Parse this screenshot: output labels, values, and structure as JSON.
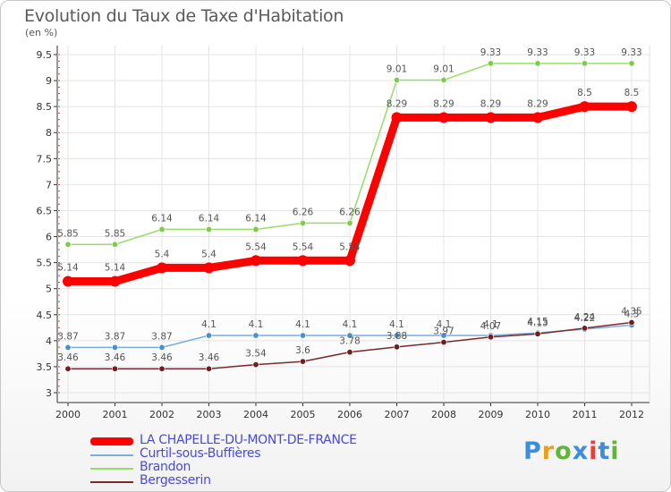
{
  "header": {
    "title": "Evolution du Taux de Taxe d'Habitation",
    "unit": "(en %)"
  },
  "logo": {
    "text": "Proxiti",
    "colors": [
      "#3c8dde",
      "#e8a020",
      "#62b43a",
      "#3c8dde",
      "#e84040",
      "#3c8dde",
      "#62b43a"
    ]
  },
  "chart_data": {
    "type": "line",
    "title": "Evolution du Taux de Taxe d'Habitation",
    "ylabel": "(en %)",
    "xlabel": "",
    "ylim": [
      3,
      9.5
    ],
    "yticks": [
      "3",
      "3.5",
      "4",
      "4.5",
      "5",
      "5.5",
      "6",
      "6.5",
      "7",
      "7.5",
      "8",
      "8.5",
      "9",
      "9.5"
    ],
    "categories": [
      "2000",
      "2001",
      "2002",
      "2003",
      "2004",
      "2005",
      "2006",
      "2007",
      "2008",
      "2009",
      "2010",
      "2011",
      "2012"
    ],
    "grid": true,
    "legend_position": "bottom-left",
    "series": [
      {
        "name": "Brandon",
        "color": "#98dc6a",
        "marker": "#7ecb4a",
        "values": [
          5.85,
          5.85,
          6.14,
          6.14,
          6.14,
          6.26,
          6.26,
          9.01,
          9.01,
          9.33,
          9.33,
          9.33,
          9.33
        ],
        "labels": [
          "5.85",
          "5.85",
          "6.14",
          "6.14",
          "6.14",
          "6.26",
          "6.26",
          "9.01",
          "9.01",
          "9.33",
          "9.33",
          "9.33",
          "9.33"
        ]
      },
      {
        "name": "Curtil-sous-Buffières",
        "color": "#7aaed6",
        "marker": "#4a90c8",
        "values": [
          3.87,
          3.87,
          3.87,
          4.1,
          4.1,
          4.1,
          4.1,
          4.1,
          4.1,
          4.1,
          4.15,
          4.22,
          4.3
        ],
        "labels": [
          "3.87",
          "3.87",
          "3.87",
          "4.1",
          "4.1",
          "4.1",
          "4.1",
          "4.1",
          "4.1",
          "4.1",
          "4.15",
          "4.22",
          "4.3"
        ]
      },
      {
        "name": "Bergesserin",
        "color": "#7a2a2a",
        "marker": "#6b1f1f",
        "values": [
          3.46,
          3.46,
          3.46,
          3.46,
          3.54,
          3.6,
          3.78,
          3.88,
          3.97,
          4.07,
          4.13,
          4.24,
          4.35
        ],
        "labels": [
          "3.46",
          "3.46",
          "3.46",
          "3.46",
          "3.54",
          "3.6",
          "3.78",
          "3.88",
          "3.97",
          "4.07",
          "4.13",
          "4.24",
          "4.35"
        ]
      },
      {
        "name": "LA CHAPELLE-DU-MONT-DE-FRANCE",
        "color": "#ff0000",
        "marker": "#ff0000",
        "values": [
          5.14,
          5.14,
          5.4,
          5.4,
          5.54,
          5.54,
          5.54,
          8.29,
          8.29,
          8.29,
          8.29,
          8.5,
          8.5
        ],
        "labels": [
          "5.14",
          "5.14",
          "5.4",
          "5.4",
          "5.54",
          "5.54",
          "5.54",
          "8.29",
          "8.29",
          "8.29",
          "8.29",
          "8.5",
          "8.5"
        ]
      }
    ],
    "legend_order": [
      "LA CHAPELLE-DU-MONT-DE-FRANCE",
      "Curtil-sous-Buffières",
      "Brandon",
      "Bergesserin"
    ]
  }
}
